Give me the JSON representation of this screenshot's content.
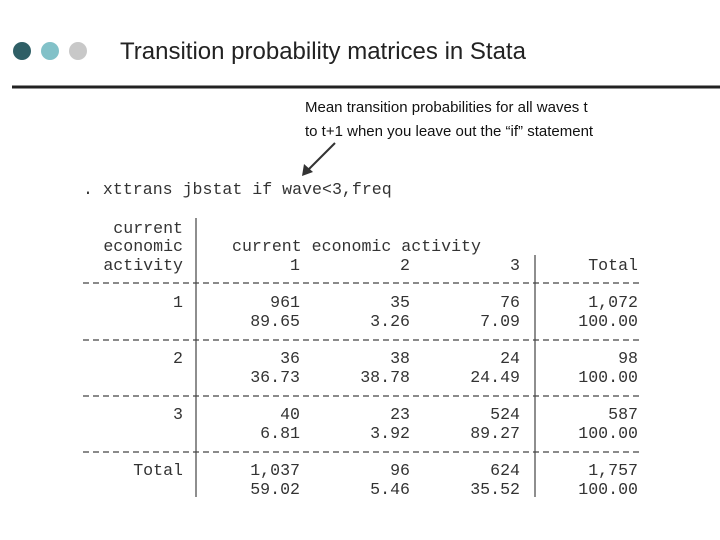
{
  "title": "Transition probability matrices in Stata",
  "annotation": [
    "Mean transition probabilities for all waves t",
    "to t+1 when you leave out the “if” statement"
  ],
  "command": ". xttrans jbstat if wave<3,freq",
  "table": {
    "row_header": [
      "current",
      "economic",
      "activity"
    ],
    "column_group": "current economic activity",
    "columns": [
      "1",
      "2",
      "3",
      "Total"
    ],
    "rows": [
      {
        "label": "1",
        "freq": [
          "961",
          "35",
          "76",
          "1,072"
        ],
        "pct": [
          "89.65",
          "3.26",
          "7.09",
          "100.00"
        ]
      },
      {
        "label": "2",
        "freq": [
          "36",
          "38",
          "24",
          "98"
        ],
        "pct": [
          "36.73",
          "38.78",
          "24.49",
          "100.00"
        ]
      },
      {
        "label": "3",
        "freq": [
          "40",
          "23",
          "524",
          "587"
        ],
        "pct": [
          "6.81",
          "3.92",
          "89.27",
          "100.00"
        ]
      },
      {
        "label": "Total",
        "freq": [
          "1,037",
          "96",
          "624",
          "1,757"
        ],
        "pct": [
          "59.02",
          "5.46",
          "35.52",
          "100.00"
        ]
      }
    ]
  }
}
